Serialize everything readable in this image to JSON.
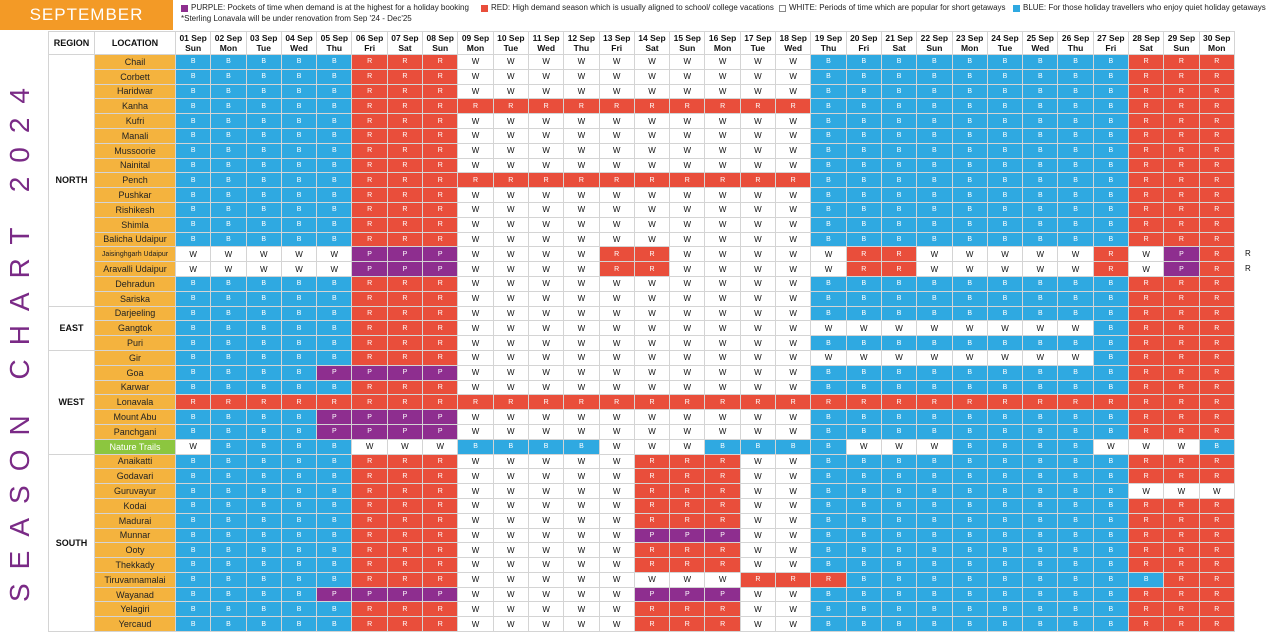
{
  "month": "SEPTEMBER",
  "title": "SEASON CHART 2024",
  "legend": {
    "purple": "PURPLE: Pockets of time when demand is at the highest for a holiday booking",
    "red": "RED: High demand season which is usually aligned to school/ college vacations",
    "white": "WHITE: Periods of time which are popular for short getaways",
    "blue": "BLUE: For those holiday travellers who enjoy quiet holiday getaways",
    "note": "*Sterling Lonavala will be under renovation from Sep '24 - Dec'25"
  },
  "colors": {
    "B": "#2fa9e1",
    "R": "#e94e3b",
    "P": "#8e2e8f",
    "W": "#ffffff",
    "location_bg": "#f4b33e",
    "month_bg": "#f39a26",
    "title": "#7a2a86"
  },
  "headers": {
    "region": "REGION",
    "location": "LOCATION"
  },
  "days": [
    [
      "01 Sep",
      "Sun"
    ],
    [
      "02 Sep",
      "Mon"
    ],
    [
      "03 Sep",
      "Tue"
    ],
    [
      "04 Sep",
      "Wed"
    ],
    [
      "05 Sep",
      "Thu"
    ],
    [
      "06 Sep",
      "Fri"
    ],
    [
      "07 Sep",
      "Sat"
    ],
    [
      "08 Sep",
      "Sun"
    ],
    [
      "09 Sep",
      "Mon"
    ],
    [
      "10 Sep",
      "Tue"
    ],
    [
      "11 Sep",
      "Wed"
    ],
    [
      "12 Sep",
      "Thu"
    ],
    [
      "13 Sep",
      "Fri"
    ],
    [
      "14 Sep",
      "Sat"
    ],
    [
      "15 Sep",
      "Sun"
    ],
    [
      "16 Sep",
      "Mon"
    ],
    [
      "17 Sep",
      "Tue"
    ],
    [
      "18 Sep",
      "Wed"
    ],
    [
      "19 Sep",
      "Thu"
    ],
    [
      "20 Sep",
      "Fri"
    ],
    [
      "21 Sep",
      "Sat"
    ],
    [
      "22 Sep",
      "Sun"
    ],
    [
      "23 Sep",
      "Mon"
    ],
    [
      "24 Sep",
      "Tue"
    ],
    [
      "25 Sep",
      "Wed"
    ],
    [
      "26 Sep",
      "Thu"
    ],
    [
      "27 Sep",
      "Fri"
    ],
    [
      "28 Sep",
      "Sat"
    ],
    [
      "29 Sep",
      "Sun"
    ],
    [
      "30 Sep",
      "Mon"
    ]
  ],
  "regions": [
    {
      "name": "NORTH",
      "rows": [
        {
          "loc": "Chail",
          "cells": "BBBBBRRRWWWWWWWWWWBBBBBBBBBRRR"
        },
        {
          "loc": "Corbett",
          "cells": "BBBBBRRRWWWWWWWWWWBBBBBBBBBRRR"
        },
        {
          "loc": "Haridwar",
          "cells": "BBBBBRRRWWWWWWWWWWBBBBBBBBBRRR"
        },
        {
          "loc": "Kanha",
          "cells": "BBBBBRRRRRRRRRRRRRBBBBBBBBBRRR"
        },
        {
          "loc": "Kufri",
          "cells": "BBBBBRRRWWWWWWWWWWBBBBBBBBBRRR"
        },
        {
          "loc": "Manali",
          "cells": "BBBBBRRRWWWWWWWWWWBBBBBBBBBRRR"
        },
        {
          "loc": "Mussoorie",
          "cells": "BBBBBRRRWWWWWWWWWWBBBBBBBBBRRR"
        },
        {
          "loc": "Nainital",
          "cells": "BBBBBRRRWWWWWWWWWWBBBBBBBBBRRR"
        },
        {
          "loc": "Pench",
          "cells": "BBBBBRRRRRRRRRRRRRBBBBBBBBBRRR"
        },
        {
          "loc": "Pushkar",
          "cells": "BBBBBRRRWWWWWWWWWWBBBBBBBBBRRR"
        },
        {
          "loc": "Rishikesh",
          "cells": "BBBBBRRRWWWWWWWWWWBBBBBBBBBRRR"
        },
        {
          "loc": "Shimla",
          "cells": "BBBBBRRRWWWWWWWWWWBBBBBBBBBRRR"
        },
        {
          "loc": "Balicha Udaipur",
          "cells": "BBBBBRRRWWWWWWWWWWBBBBBBBBBRRR"
        },
        {
          "loc": "Jaisinghgarh Udaipur",
          "small": true,
          "cells": "WWWWWPPPWWWWRRWWWWWRRWWWWWRWPR",
          "extra": "R"
        },
        {
          "loc": "Aravalli Udaipur",
          "cells": "WWWWWPPPWWWWRRWWWWWRRWWWWWRWPR",
          "extra": "R"
        },
        {
          "loc": "Dehradun",
          "cells": "BBBBBRRRWWWWWWWWWWBBBBBBBBBRRR"
        },
        {
          "loc": "Sariska",
          "cells": "BBBBBRRRWWWWWWWWWWBBBBBBBBBRRR"
        }
      ]
    },
    {
      "name": "EAST",
      "rows": [
        {
          "loc": "Darjeeling",
          "cells": "BBBBBRRRWWWWWWWWWWBBBBBBBBBRRR"
        },
        {
          "loc": "Gangtok",
          "cells": "BBBBBRRRWWWWWWWWWWWWWWWWWWBRRR"
        },
        {
          "loc": "Puri",
          "cells": "BBBBBRRRWWWWWWWWWWBBBBBBBBBRRR"
        }
      ]
    },
    {
      "name": "WEST",
      "rows": [
        {
          "loc": "Gir",
          "cells": "BBBBBRRRWWWWWWWWWWWWWWWWWWBRRR"
        },
        {
          "loc": "Goa",
          "cells": "BBBBPPPPWWWWWWWWWWBBBBBBBBBRRR"
        },
        {
          "loc": "Karwar",
          "cells": "BBBBBRRRWWWWWWWWWWBBBBBBBBBRRR"
        },
        {
          "loc": "Lonavala",
          "cells": "RRRRRRRRRRRRRRRRRRRRRRRRRRRRRR"
        },
        {
          "loc": "Mount Abu",
          "cells": "BBBBPPPPWWWWWWWWWWBBBBBBBBBRRR"
        },
        {
          "loc": "Panchgani",
          "cells": "BBBBPPPPWWWWWWWWWWBBBBBBBBBRRR"
        },
        {
          "loc": "Nature Trails",
          "green": true,
          "cells": "WBBBBWWWBBBBWWWBBBBWWWBBBBWWWB"
        }
      ]
    },
    {
      "name": "SOUTH",
      "rows": [
        {
          "loc": "Anaikatti",
          "cells": "BBBBBRRRWWWWWRRRWWBBBBBBBBBRRR"
        },
        {
          "loc": "Godavari",
          "cells": "BBBBBRRRWWWWWRRRWWBBBBBBBBBRRR"
        },
        {
          "loc": "Guruvayur",
          "cells": "BBBBBRRRWWWWWRRRWWBBBBBBBBBWWW"
        },
        {
          "loc": "Kodai",
          "cells": "BBBBBRRRWWWWWRRRWWBBBBBBBBBRRR"
        },
        {
          "loc": "Madurai",
          "cells": "BBBBBRRRWWWWWRRRWWBBBBBBBBBRRR"
        },
        {
          "loc": "Munnar",
          "cells": "BBBBBRRRWWWWWPPPWWBBBBBBBBBRRR"
        },
        {
          "loc": "Ooty",
          "cells": "BBBBBRRRWWWWWRRRWWBBBBBBBBBRRR"
        },
        {
          "loc": "Thekkady",
          "cells": "BBBBBRRRWWWWWRRRWWBBBBBBBBBRRR"
        },
        {
          "loc": "Tiruvannamalai",
          "cells": "BBBBBRRRWWWWWWWWRRRBBBBBBBBBRR"
        },
        {
          "loc": "Wayanad",
          "cells": "BBBBPPPPWWWWWPPPWWBBBBBBBBBRRR"
        },
        {
          "loc": "Yelagiri",
          "cells": "BBBBBRRRWWWWWRRRWWBBBBBBBBBRRR"
        },
        {
          "loc": "Yercaud",
          "cells": "BBBBBRRRWWWWWRRRWWBBBBBBBBBRRR"
        }
      ]
    }
  ]
}
